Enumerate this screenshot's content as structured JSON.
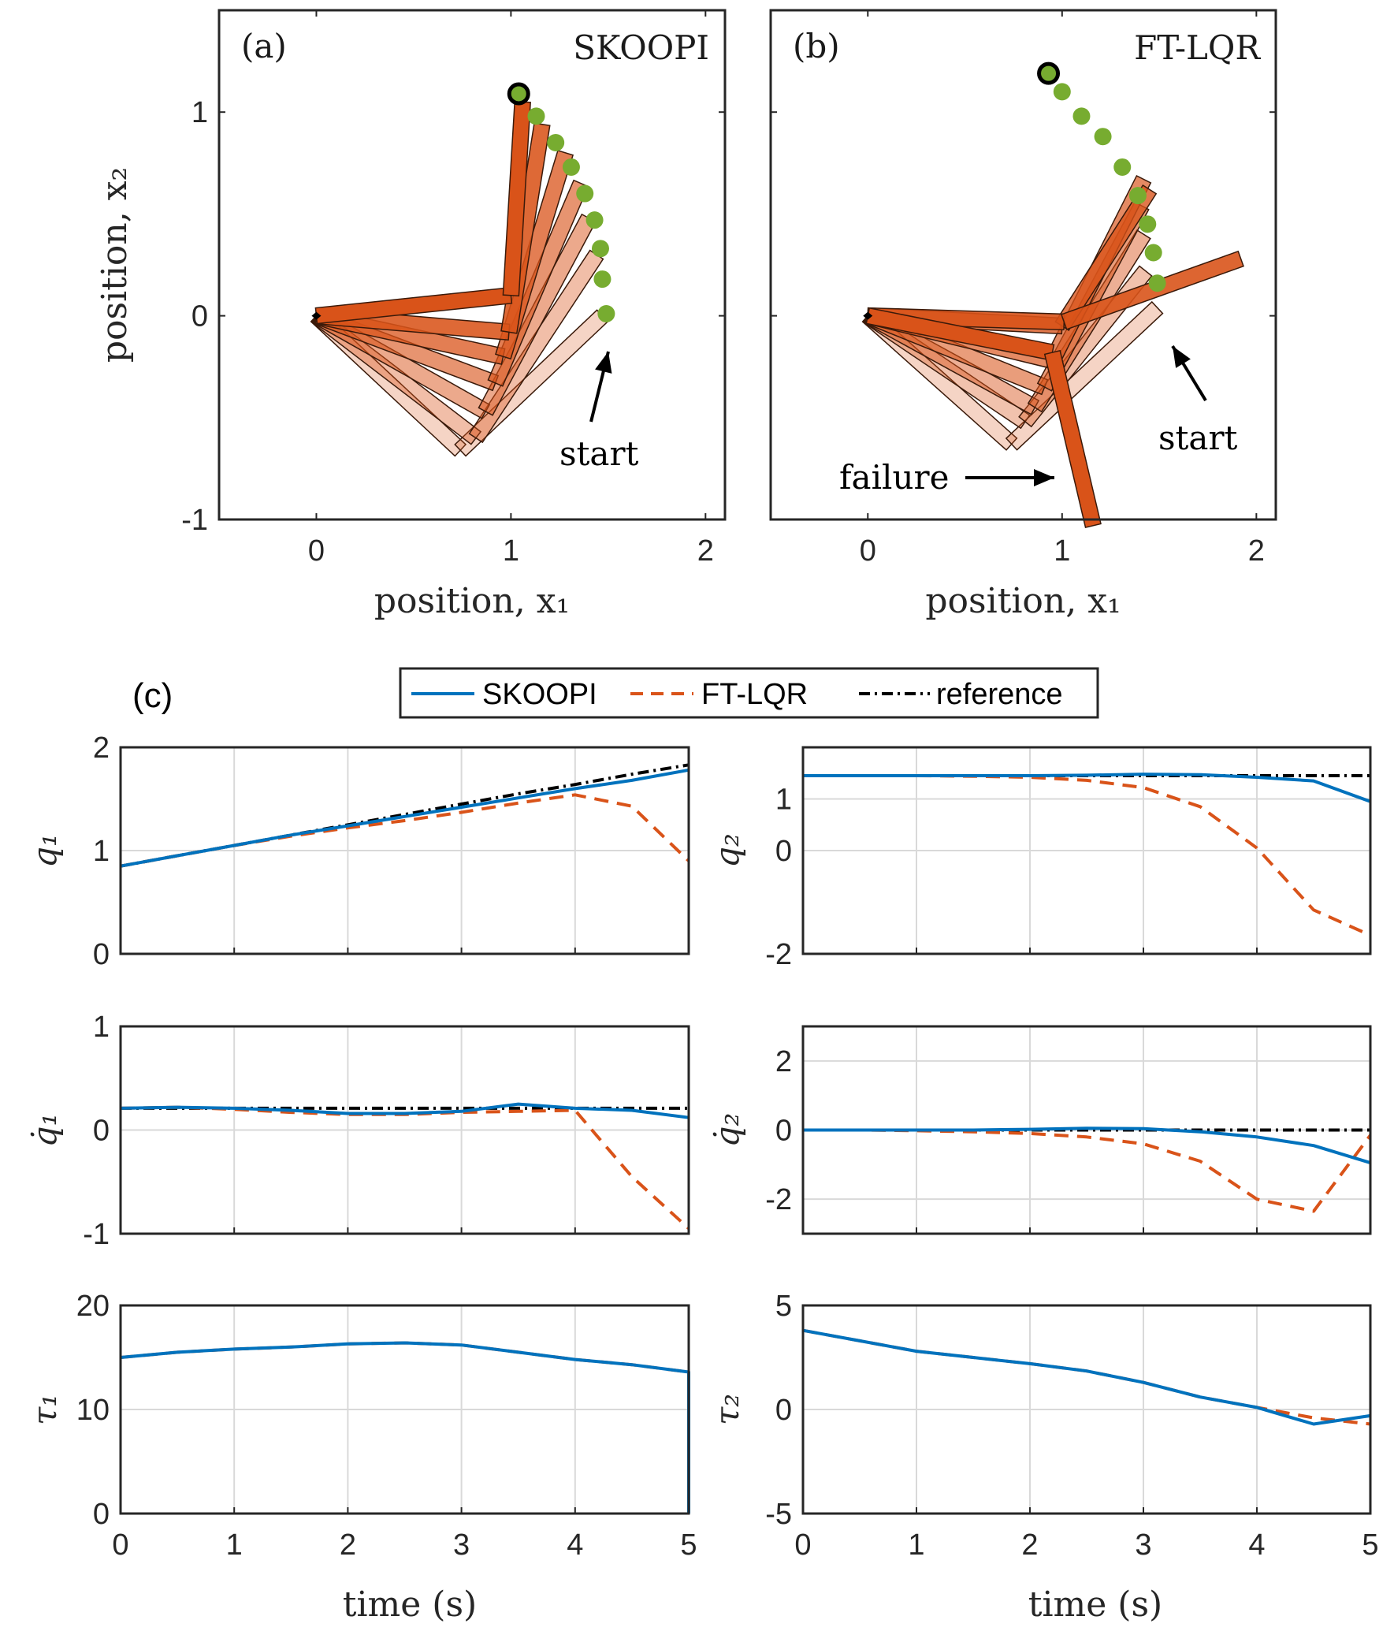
{
  "colors": {
    "skoopi": "#0072BD",
    "ftlqr": "#D95319",
    "reference": "#000000",
    "grid": "#d9d9d9",
    "target": "#77AC30",
    "link": "#D95319"
  },
  "panels_top": [
    {
      "label": "(a)",
      "title": "SKOOPI",
      "xlabel": "position, x₁",
      "ylabel": "position, x₂",
      "xticks": [
        "0",
        "1",
        "2"
      ],
      "yticks": [
        "-1",
        "0",
        "1"
      ],
      "annotations": [
        {
          "text": "start"
        }
      ],
      "chart_data": {
        "type": "scatter",
        "xlim": [
          -0.5,
          2.1
        ],
        "ylim": [
          -1,
          1.5
        ],
        "target_points": [
          [
            1.04,
            1.09
          ],
          [
            1.13,
            0.98
          ],
          [
            1.23,
            0.85
          ],
          [
            1.31,
            0.73
          ],
          [
            1.38,
            0.6
          ],
          [
            1.43,
            0.47
          ],
          [
            1.46,
            0.33
          ],
          [
            1.47,
            0.18
          ],
          [
            1.49,
            0.01
          ]
        ],
        "arm_elbows": [
          [
            0.74,
            -0.66
          ],
          [
            0.82,
            -0.6
          ],
          [
            0.87,
            -0.47
          ],
          [
            0.92,
            -0.33
          ],
          [
            0.96,
            -0.2
          ],
          [
            0.99,
            -0.08
          ],
          [
            1.0,
            0.1
          ]
        ],
        "arm_tips": [
          [
            1.47,
            0.0
          ],
          [
            1.44,
            0.3
          ],
          [
            1.4,
            0.48
          ],
          [
            1.36,
            0.65
          ],
          [
            1.28,
            0.8
          ],
          [
            1.16,
            0.94
          ],
          [
            1.06,
            1.05
          ]
        ]
      }
    },
    {
      "label": "(b)",
      "title": "FT-LQR",
      "xlabel": "position, x₁",
      "ylabel": "",
      "xticks": [
        "0",
        "1",
        "2"
      ],
      "yticks": [],
      "annotations": [
        {
          "text": "start"
        },
        {
          "text": "failure"
        }
      ],
      "chart_data": {
        "type": "scatter",
        "xlim": [
          -0.5,
          2.1
        ],
        "ylim": [
          -1,
          1.5
        ],
        "target_points": [
          [
            0.93,
            1.19
          ],
          [
            1.0,
            1.1
          ],
          [
            1.1,
            0.98
          ],
          [
            1.21,
            0.88
          ],
          [
            1.31,
            0.73
          ],
          [
            1.39,
            0.59
          ],
          [
            1.44,
            0.45
          ],
          [
            1.47,
            0.31
          ],
          [
            1.49,
            0.16
          ]
        ],
        "arm_elbows": [
          [
            0.74,
            -0.63
          ],
          [
            0.81,
            -0.52
          ],
          [
            0.86,
            -0.45
          ],
          [
            0.91,
            -0.35
          ],
          [
            0.95,
            -0.22
          ],
          [
            1.0,
            -0.05
          ],
          [
            1.01,
            -0.03
          ],
          [
            0.95,
            -0.18
          ]
        ],
        "arm_tips": [
          [
            1.49,
            0.04
          ],
          [
            1.43,
            0.22
          ],
          [
            1.42,
            0.4
          ],
          [
            1.41,
            0.54
          ],
          [
            1.42,
            0.67
          ],
          [
            1.45,
            0.62
          ],
          [
            1.92,
            0.28
          ],
          [
            1.16,
            -1.03
          ]
        ]
      }
    }
  ],
  "panel_c_label": "(c)",
  "legend": [
    "SKOOPI",
    "FT-LQR",
    "reference"
  ],
  "xlabel_bottom": "time (s)",
  "time_ticks": [
    "0",
    "1",
    "2",
    "3",
    "4",
    "5"
  ],
  "subplots": [
    {
      "ylabel": "q₁",
      "yticks": [
        "0",
        "1",
        "2"
      ],
      "ylim": [
        0,
        2
      ],
      "chart_data": {
        "type": "line",
        "x": [
          0,
          0.5,
          1,
          1.5,
          2,
          2.5,
          3,
          3.5,
          4,
          4.5,
          5
        ],
        "series": [
          {
            "name": "SKOOPI",
            "values": [
              0.85,
              0.95,
              1.05,
              1.15,
              1.24,
              1.33,
              1.42,
              1.51,
              1.6,
              1.68,
              1.78
            ]
          },
          {
            "name": "FT-LQR",
            "values": [
              0.85,
              0.95,
              1.05,
              1.14,
              1.22,
              1.29,
              1.37,
              1.46,
              1.54,
              1.43,
              0.9
            ]
          },
          {
            "name": "reference",
            "values": [
              0.85,
              0.95,
              1.05,
              1.15,
              1.25,
              1.35,
              1.45,
              1.55,
              1.64,
              1.74,
              1.83
            ]
          }
        ]
      }
    },
    {
      "ylabel": "q₂",
      "yticks": [
        "-2",
        "0",
        "1"
      ],
      "ylim": [
        -2,
        2
      ],
      "chart_data": {
        "type": "line",
        "x": [
          0,
          0.5,
          1,
          1.5,
          2,
          2.5,
          3,
          3.5,
          4,
          4.5,
          5
        ],
        "series": [
          {
            "name": "SKOOPI",
            "values": [
              1.45,
              1.45,
              1.45,
              1.45,
              1.45,
              1.46,
              1.48,
              1.47,
              1.42,
              1.35,
              0.95
            ]
          },
          {
            "name": "FT-LQR",
            "values": [
              1.45,
              1.45,
              1.45,
              1.44,
              1.42,
              1.36,
              1.22,
              0.85,
              0.05,
              -1.15,
              -1.64
            ]
          },
          {
            "name": "reference",
            "values": [
              1.45,
              1.45,
              1.45,
              1.45,
              1.45,
              1.45,
              1.45,
              1.45,
              1.45,
              1.45,
              1.45
            ]
          }
        ]
      }
    },
    {
      "ylabel": "q̇₁",
      "yticks": [
        "-1",
        "0",
        "1"
      ],
      "ylim": [
        -1,
        1
      ],
      "chart_data": {
        "type": "line",
        "x": [
          0,
          0.5,
          1,
          1.5,
          2,
          2.5,
          3,
          3.5,
          4,
          4.5,
          5
        ],
        "series": [
          {
            "name": "SKOOPI",
            "values": [
              0.21,
              0.22,
              0.21,
              0.19,
              0.16,
              0.16,
              0.18,
              0.25,
              0.21,
              0.19,
              0.12
            ]
          },
          {
            "name": "FT-LQR",
            "values": [
              0.21,
              0.22,
              0.2,
              0.17,
              0.15,
              0.15,
              0.17,
              0.18,
              0.19,
              -0.45,
              -0.95
            ]
          },
          {
            "name": "reference",
            "values": [
              0.21,
              0.21,
              0.21,
              0.21,
              0.21,
              0.21,
              0.21,
              0.21,
              0.21,
              0.21,
              0.21
            ]
          }
        ]
      }
    },
    {
      "ylabel": "q̇₂",
      "yticks": [
        "-2",
        "0",
        "2"
      ],
      "ylim": [
        -3,
        3
      ],
      "chart_data": {
        "type": "line",
        "x": [
          0,
          0.5,
          1,
          1.5,
          2,
          2.5,
          3,
          3.5,
          4,
          4.5,
          5
        ],
        "series": [
          {
            "name": "SKOOPI",
            "values": [
              0,
              0,
              0,
              0,
              0.02,
              0.05,
              0.04,
              -0.05,
              -0.2,
              -0.45,
              -0.95
            ]
          },
          {
            "name": "FT-LQR",
            "values": [
              0,
              0,
              -0.02,
              -0.05,
              -0.1,
              -0.2,
              -0.4,
              -0.9,
              -2.0,
              -2.35,
              -0.15
            ]
          },
          {
            "name": "reference",
            "values": [
              0,
              0,
              0,
              0,
              0,
              0,
              0,
              0,
              0,
              0,
              0
            ]
          }
        ]
      }
    },
    {
      "ylabel": "τ₁",
      "yticks": [
        "0",
        "10",
        "20"
      ],
      "ylim": [
        0,
        20
      ],
      "chart_data": {
        "type": "line",
        "x": [
          0,
          0.5,
          1,
          1.5,
          2,
          2.5,
          3,
          3.5,
          4,
          4.5,
          5,
          5
        ],
        "series": [
          {
            "name": "SKOOPI",
            "values": [
              15,
              15.5,
              15.8,
              16,
              16.3,
              16.4,
              16.2,
              15.5,
              14.8,
              14.3,
              13.6,
              0
            ]
          },
          {
            "name": "FT-LQR",
            "values": [
              15,
              15.5,
              15.8,
              16,
              16.3,
              16.4,
              16.2,
              15.5,
              14.8,
              14.3,
              13.6,
              0
            ]
          }
        ]
      }
    },
    {
      "ylabel": "τ₂",
      "yticks": [
        "-5",
        "0",
        "5"
      ],
      "ylim": [
        -5,
        5
      ],
      "chart_data": {
        "type": "line",
        "x": [
          0,
          0.5,
          1,
          1.5,
          2,
          2.5,
          3,
          3.5,
          4,
          4.5,
          5
        ],
        "series": [
          {
            "name": "SKOOPI",
            "values": [
              3.8,
              3.3,
              2.8,
              2.5,
              2.2,
              1.85,
              1.3,
              0.6,
              0.1,
              -0.7,
              -0.3
            ]
          },
          {
            "name": "FT-LQR",
            "values": [
              3.8,
              3.3,
              2.8,
              2.5,
              2.2,
              1.85,
              1.3,
              0.6,
              0.1,
              -0.4,
              -0.7
            ]
          }
        ]
      }
    }
  ]
}
